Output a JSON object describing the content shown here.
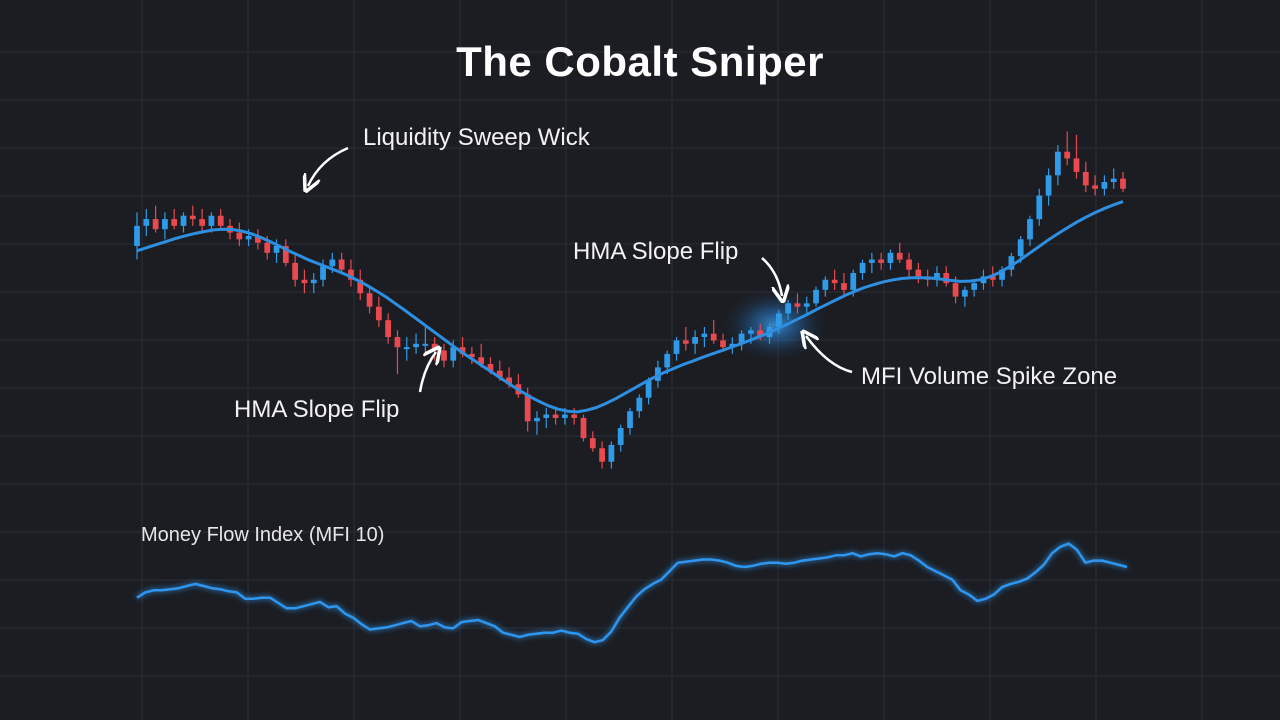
{
  "title": "The Cobalt Sniper",
  "colors": {
    "background": "#1b1d23",
    "grid": "#2b2e36",
    "bull": "#2f9be8",
    "bear": "#e84a4f",
    "hma": "#2e8fe0",
    "mfi": "#2f96ef",
    "text": "#ffffff"
  },
  "annotations": {
    "liquidity_sweep": "Liquidity Sweep Wick",
    "hma_flip_1": "HMA Slope Flip",
    "hma_flip_2": "HMA Slope Flip",
    "mfi_spike": "MFI Volume Spike Zone"
  },
  "mfi_label": "Money Flow Index (MFI 10)",
  "chart_data": [
    {
      "type": "candlestick",
      "title": "The Cobalt Sniper",
      "grid": true,
      "ylim": [
        0,
        100
      ],
      "candles": [
        {
          "o": 62,
          "h": 72,
          "l": 58,
          "c": 68
        },
        {
          "o": 68,
          "h": 73,
          "l": 65,
          "c": 70
        },
        {
          "o": 70,
          "h": 74,
          "l": 66,
          "c": 67
        },
        {
          "o": 67,
          "h": 72,
          "l": 64,
          "c": 70
        },
        {
          "o": 70,
          "h": 73,
          "l": 67,
          "c": 68
        },
        {
          "o": 68,
          "h": 72,
          "l": 66,
          "c": 71
        },
        {
          "o": 71,
          "h": 74,
          "l": 68,
          "c": 70
        },
        {
          "o": 70,
          "h": 73,
          "l": 66,
          "c": 68
        },
        {
          "o": 68,
          "h": 72,
          "l": 66,
          "c": 71
        },
        {
          "o": 71,
          "h": 73,
          "l": 67,
          "c": 68
        },
        {
          "o": 68,
          "h": 70,
          "l": 64,
          "c": 66
        },
        {
          "o": 66,
          "h": 69,
          "l": 62,
          "c": 64
        },
        {
          "o": 64,
          "h": 67,
          "l": 62,
          "c": 65
        },
        {
          "o": 65,
          "h": 67,
          "l": 61,
          "c": 63
        },
        {
          "o": 63,
          "h": 65,
          "l": 58,
          "c": 60
        },
        {
          "o": 60,
          "h": 64,
          "l": 57,
          "c": 62
        },
        {
          "o": 62,
          "h": 64,
          "l": 56,
          "c": 57
        },
        {
          "o": 57,
          "h": 60,
          "l": 50,
          "c": 52
        },
        {
          "o": 52,
          "h": 55,
          "l": 48,
          "c": 51
        },
        {
          "o": 51,
          "h": 54,
          "l": 48,
          "c": 52
        },
        {
          "o": 52,
          "h": 58,
          "l": 50,
          "c": 56
        },
        {
          "o": 56,
          "h": 60,
          "l": 54,
          "c": 58
        },
        {
          "o": 58,
          "h": 60,
          "l": 54,
          "c": 55
        },
        {
          "o": 55,
          "h": 58,
          "l": 50,
          "c": 52
        },
        {
          "o": 52,
          "h": 55,
          "l": 46,
          "c": 48
        },
        {
          "o": 48,
          "h": 50,
          "l": 42,
          "c": 44
        },
        {
          "o": 44,
          "h": 47,
          "l": 38,
          "c": 40
        },
        {
          "o": 40,
          "h": 42,
          "l": 33,
          "c": 35
        },
        {
          "o": 35,
          "h": 37,
          "l": 24,
          "c": 32
        },
        {
          "o": 32,
          "h": 35,
          "l": 28,
          "c": 32
        },
        {
          "o": 32,
          "h": 36,
          "l": 30,
          "c": 33
        },
        {
          "o": 33,
          "h": 38,
          "l": 30,
          "c": 33
        },
        {
          "o": 33,
          "h": 35,
          "l": 28,
          "c": 31
        },
        {
          "o": 31,
          "h": 33,
          "l": 26,
          "c": 28
        },
        {
          "o": 28,
          "h": 34,
          "l": 26,
          "c": 32
        },
        {
          "o": 32,
          "h": 35,
          "l": 29,
          "c": 30
        },
        {
          "o": 30,
          "h": 32,
          "l": 27,
          "c": 29
        },
        {
          "o": 29,
          "h": 33,
          "l": 26,
          "c": 27
        },
        {
          "o": 27,
          "h": 29,
          "l": 24,
          "c": 25
        },
        {
          "o": 25,
          "h": 28,
          "l": 22,
          "c": 23
        },
        {
          "o": 23,
          "h": 26,
          "l": 20,
          "c": 21
        },
        {
          "o": 21,
          "h": 24,
          "l": 17,
          "c": 18
        },
        {
          "o": 18,
          "h": 20,
          "l": 7,
          "c": 10
        },
        {
          "o": 10,
          "h": 13,
          "l": 6,
          "c": 11
        },
        {
          "o": 11,
          "h": 14,
          "l": 8,
          "c": 12
        },
        {
          "o": 12,
          "h": 14,
          "l": 9,
          "c": 11
        },
        {
          "o": 11,
          "h": 14,
          "l": 9,
          "c": 12
        },
        {
          "o": 12,
          "h": 14,
          "l": 9,
          "c": 11
        },
        {
          "o": 11,
          "h": 12,
          "l": 4,
          "c": 5
        },
        {
          "o": 5,
          "h": 7,
          "l": 1,
          "c": 2
        },
        {
          "o": 2,
          "h": 4,
          "l": -4,
          "c": -2
        },
        {
          "o": -2,
          "h": 4,
          "l": -4,
          "c": 3
        },
        {
          "o": 3,
          "h": 9,
          "l": 1,
          "c": 8
        },
        {
          "o": 8,
          "h": 14,
          "l": 6,
          "c": 13
        },
        {
          "o": 13,
          "h": 18,
          "l": 11,
          "c": 17
        },
        {
          "o": 17,
          "h": 23,
          "l": 15,
          "c": 22
        },
        {
          "o": 22,
          "h": 28,
          "l": 20,
          "c": 26
        },
        {
          "o": 26,
          "h": 31,
          "l": 24,
          "c": 30
        },
        {
          "o": 30,
          "h": 35,
          "l": 28,
          "c": 34
        },
        {
          "o": 34,
          "h": 38,
          "l": 31,
          "c": 33
        },
        {
          "o": 33,
          "h": 37,
          "l": 30,
          "c": 35
        },
        {
          "o": 35,
          "h": 38,
          "l": 32,
          "c": 36
        },
        {
          "o": 36,
          "h": 40,
          "l": 33,
          "c": 34
        },
        {
          "o": 34,
          "h": 36,
          "l": 31,
          "c": 32
        },
        {
          "o": 32,
          "h": 35,
          "l": 30,
          "c": 33
        },
        {
          "o": 33,
          "h": 37,
          "l": 31,
          "c": 36
        },
        {
          "o": 36,
          "h": 38,
          "l": 33,
          "c": 37
        },
        {
          "o": 37,
          "h": 39,
          "l": 34,
          "c": 35
        },
        {
          "o": 35,
          "h": 39,
          "l": 33,
          "c": 38
        },
        {
          "o": 38,
          "h": 43,
          "l": 36,
          "c": 42
        },
        {
          "o": 42,
          "h": 46,
          "l": 40,
          "c": 45
        },
        {
          "o": 45,
          "h": 48,
          "l": 42,
          "c": 44
        },
        {
          "o": 44,
          "h": 47,
          "l": 42,
          "c": 45
        },
        {
          "o": 45,
          "h": 50,
          "l": 44,
          "c": 49
        },
        {
          "o": 49,
          "h": 53,
          "l": 47,
          "c": 52
        },
        {
          "o": 52,
          "h": 55,
          "l": 49,
          "c": 51
        },
        {
          "o": 51,
          "h": 54,
          "l": 47,
          "c": 49
        },
        {
          "o": 49,
          "h": 55,
          "l": 47,
          "c": 54
        },
        {
          "o": 54,
          "h": 58,
          "l": 52,
          "c": 57
        },
        {
          "o": 57,
          "h": 60,
          "l": 54,
          "c": 58
        },
        {
          "o": 58,
          "h": 60,
          "l": 55,
          "c": 57
        },
        {
          "o": 57,
          "h": 61,
          "l": 55,
          "c": 60
        },
        {
          "o": 60,
          "h": 63,
          "l": 57,
          "c": 58
        },
        {
          "o": 58,
          "h": 60,
          "l": 53,
          "c": 55
        },
        {
          "o": 55,
          "h": 57,
          "l": 51,
          "c": 53
        },
        {
          "o": 53,
          "h": 55,
          "l": 50,
          "c": 52
        },
        {
          "o": 52,
          "h": 56,
          "l": 50,
          "c": 54
        },
        {
          "o": 54,
          "h": 56,
          "l": 50,
          "c": 51
        },
        {
          "o": 51,
          "h": 53,
          "l": 45,
          "c": 47
        },
        {
          "o": 47,
          "h": 50,
          "l": 44,
          "c": 49
        },
        {
          "o": 49,
          "h": 52,
          "l": 47,
          "c": 51
        },
        {
          "o": 51,
          "h": 55,
          "l": 49,
          "c": 53
        },
        {
          "o": 53,
          "h": 56,
          "l": 50,
          "c": 52
        },
        {
          "o": 52,
          "h": 56,
          "l": 50,
          "c": 55
        },
        {
          "o": 55,
          "h": 60,
          "l": 53,
          "c": 59
        },
        {
          "o": 59,
          "h": 65,
          "l": 57,
          "c": 64
        },
        {
          "o": 64,
          "h": 71,
          "l": 62,
          "c": 70
        },
        {
          "o": 70,
          "h": 79,
          "l": 68,
          "c": 77
        },
        {
          "o": 77,
          "h": 85,
          "l": 74,
          "c": 83
        },
        {
          "o": 83,
          "h": 92,
          "l": 80,
          "c": 90
        },
        {
          "o": 90,
          "h": 96,
          "l": 86,
          "c": 88
        },
        {
          "o": 88,
          "h": 95,
          "l": 82,
          "c": 84
        },
        {
          "o": 84,
          "h": 87,
          "l": 78,
          "c": 80
        },
        {
          "o": 80,
          "h": 83,
          "l": 77,
          "c": 79
        },
        {
          "o": 79,
          "h": 83,
          "l": 77,
          "c": 81
        },
        {
          "o": 81,
          "h": 85,
          "l": 79,
          "c": 82
        },
        {
          "o": 82,
          "h": 84,
          "l": 78,
          "c": 79
        }
      ],
      "series": [
        {
          "values": [
            60.6,
            61.5,
            62.4,
            63.3,
            64.2,
            65.0,
            65.7,
            66.3,
            66.8,
            67.0,
            66.9,
            66.4,
            65.6,
            64.5,
            63.2,
            61.8,
            60.4,
            59.1,
            57.8,
            56.7,
            55.6,
            54.5,
            53.3,
            51.9,
            50.4,
            48.7,
            46.9,
            44.9,
            42.9,
            40.8,
            38.7,
            36.6,
            34.5,
            32.4,
            30.4,
            28.5,
            26.6,
            24.7,
            22.8,
            20.9,
            19.1,
            17.4,
            15.9,
            14.6,
            13.6,
            13.0,
            12.8,
            13.3,
            14.1,
            15.3,
            16.7,
            18.3,
            19.9,
            21.5,
            23.0,
            24.4,
            25.6,
            26.8,
            27.8,
            28.9,
            29.9,
            30.9,
            31.9,
            32.9,
            34.0,
            35.1,
            36.3,
            37.6,
            38.9,
            40.3,
            41.7,
            43.2,
            44.6,
            46.0,
            47.4,
            48.6,
            49.7,
            50.6,
            51.4,
            52.0,
            52.4,
            52.6,
            52.6,
            52.5,
            52.2,
            51.8,
            51.5,
            51.6,
            52.0,
            52.8,
            54.0,
            55.6,
            57.4,
            59.4,
            61.4,
            63.4,
            65.3,
            67.1,
            68.8,
            70.4,
            71.8,
            73.1,
            74.2,
            75.2
          ]
        }
      ]
    },
    {
      "type": "line",
      "title": "Money Flow Index (MFI 10)",
      "ylim": [
        0,
        100
      ],
      "levels": [
        80,
        20
      ],
      "series": [
        {
          "values": [
            55,
            60,
            62,
            62,
            63,
            64,
            66,
            68,
            66,
            64,
            63,
            61,
            60,
            54,
            54,
            55,
            55,
            50,
            45,
            45,
            47,
            49,
            51,
            46,
            47,
            40,
            36,
            30,
            25,
            26,
            27,
            29,
            31,
            33,
            28,
            29,
            31,
            27,
            26,
            32,
            33,
            34,
            31,
            28,
            22,
            20,
            18,
            20,
            21,
            22,
            22,
            24,
            22,
            21,
            16,
            13,
            15,
            23,
            36,
            46,
            56,
            63,
            68,
            72,
            80,
            88,
            89,
            90,
            91,
            91,
            90,
            88,
            85,
            84,
            85,
            87,
            88,
            88,
            87,
            88,
            90,
            91,
            92,
            93,
            95,
            95,
            97,
            94,
            96,
            97,
            96,
            94,
            97,
            95,
            90,
            84,
            80,
            76,
            72,
            62,
            58,
            52,
            54,
            58,
            65,
            68,
            70,
            73,
            79,
            86,
            97,
            103,
            106,
            100,
            88,
            90,
            90,
            88,
            86,
            84
          ]
        }
      ]
    }
  ]
}
